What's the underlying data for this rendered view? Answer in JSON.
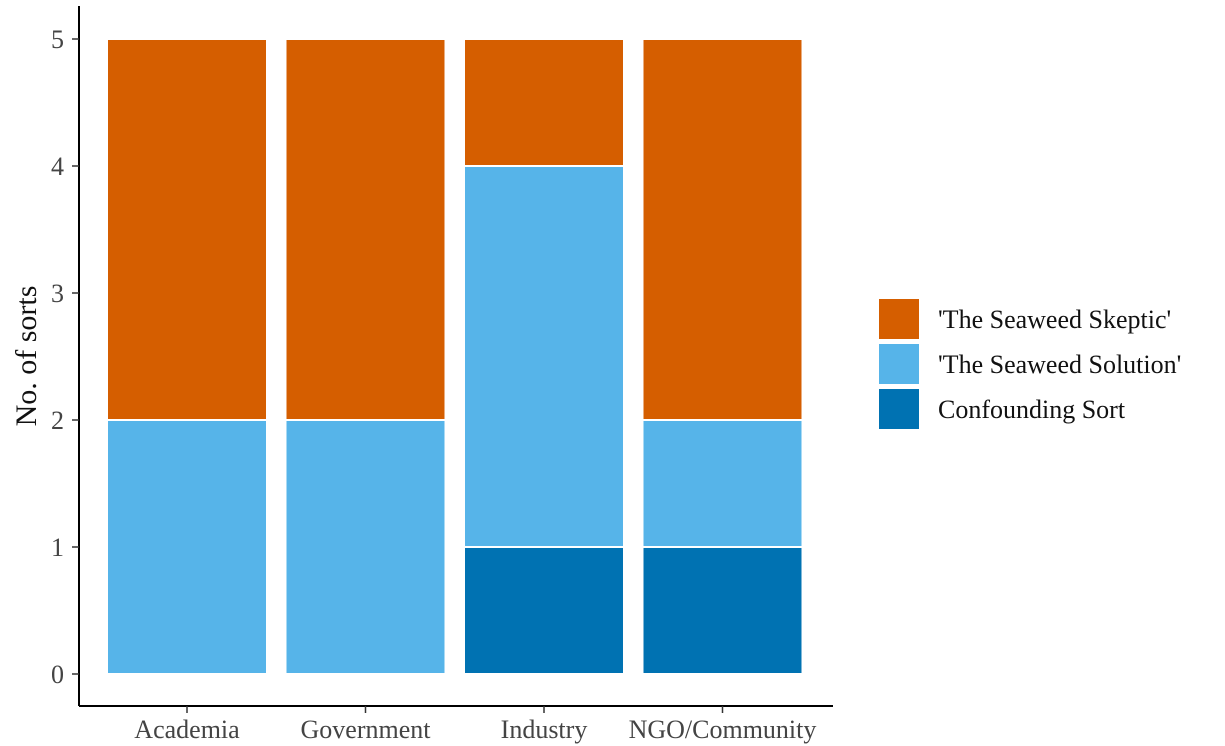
{
  "chart_data": {
    "type": "bar",
    "stacked": true,
    "categories": [
      "Academia",
      "Government",
      "Industry",
      "NGO/Community"
    ],
    "series": [
      {
        "name": "'The Seaweed Skeptic'",
        "color": "#D55E00",
        "values": [
          3,
          3,
          1,
          3
        ]
      },
      {
        "name": "'The Seaweed Solution'",
        "color": "#56B4E9",
        "values": [
          2,
          2,
          3,
          1
        ]
      },
      {
        "name": "Confounding Sort",
        "color": "#0072B2",
        "values": [
          0,
          0,
          1,
          1
        ]
      }
    ],
    "stack_order_bottom_to_top": [
      "Confounding Sort",
      "'The Seaweed Solution'",
      "'The Seaweed Skeptic'"
    ],
    "ylabel": "No. of sorts",
    "xlabel": "",
    "ylim": [
      0,
      5
    ],
    "yticks": [
      0,
      1,
      2,
      3,
      4,
      5
    ],
    "grid": false,
    "legend_position": "right"
  }
}
